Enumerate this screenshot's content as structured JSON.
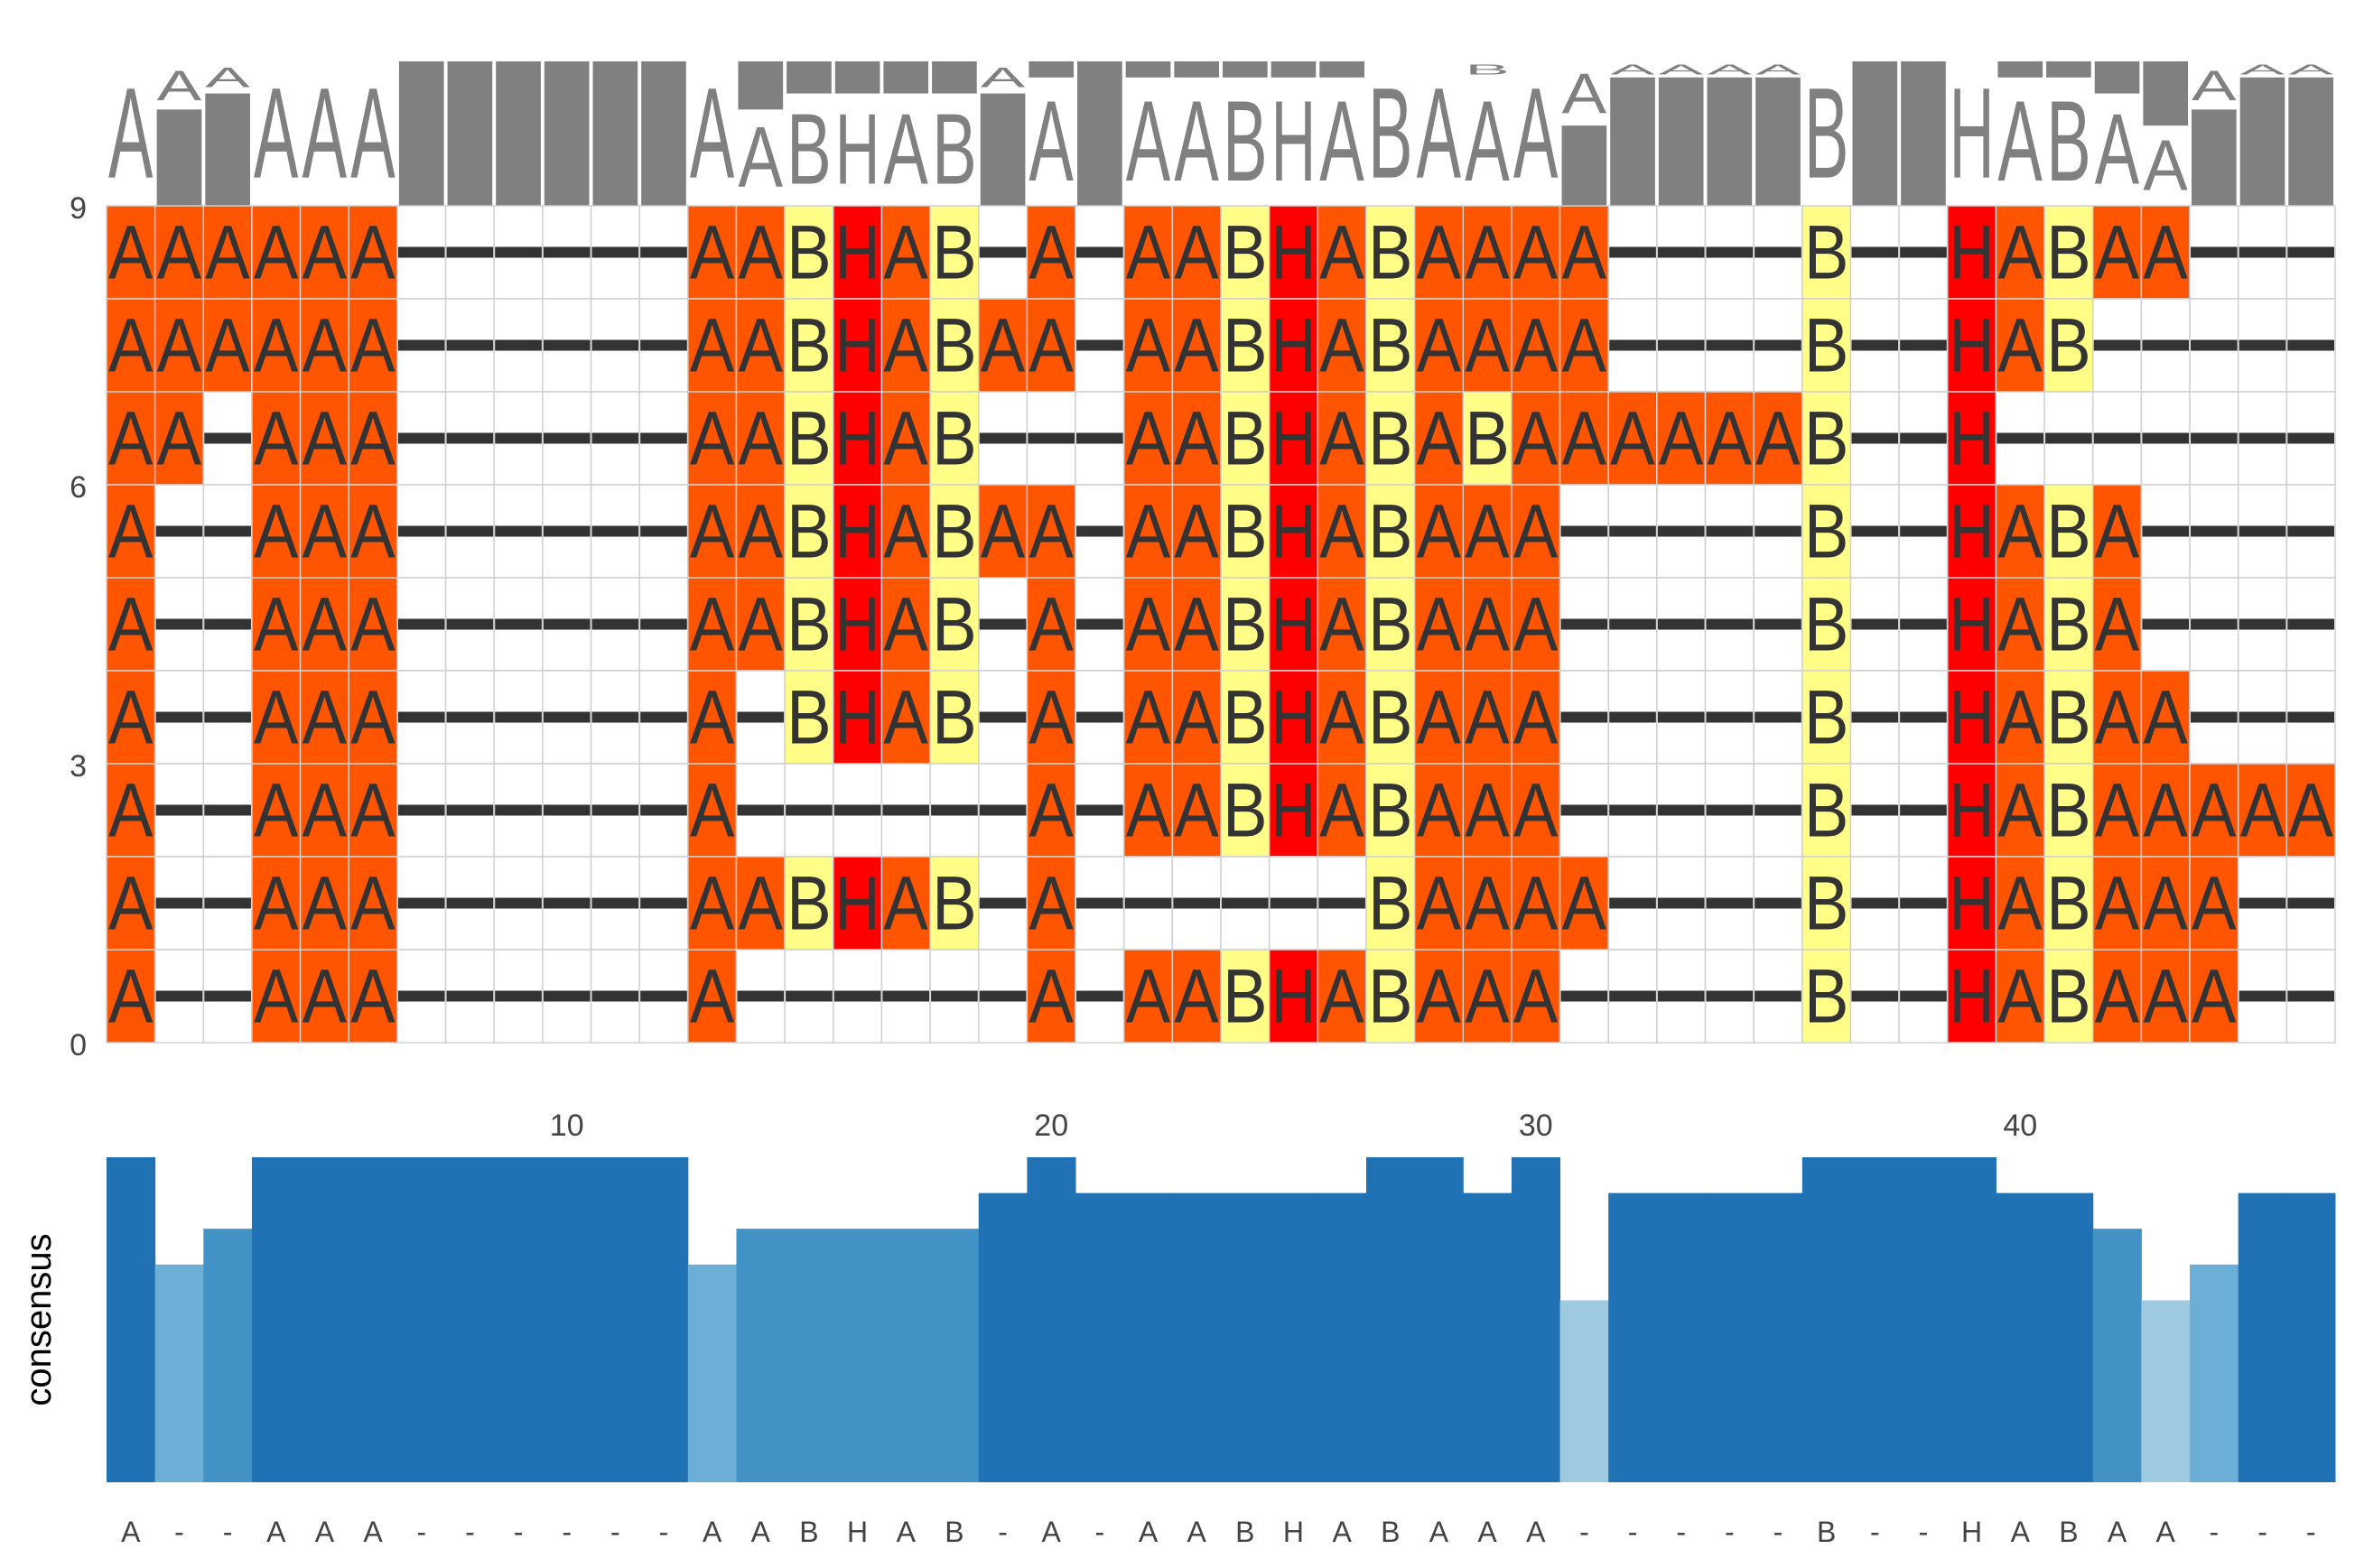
{
  "chart_data": [
    {
      "type": "heatmap",
      "title": "",
      "xlabel": "",
      "ylabel": "",
      "x_ticks": [
        10,
        20,
        30,
        40
      ],
      "y_ticks": [
        0,
        3,
        6,
        9
      ],
      "columns": 46,
      "rows_top_to_bottom": [
        "AAAAAA------AABHAB-A-AABHABAAAA----B--HABAA----",
        "AAAAAA------AABHABAA-AABHABAAAA----B--HAB------",
        "AA-AAA------AABHAB---AABHABABAAAAAAB--H--------",
        "A--AAA------AABHABAA-AABHABAAA-----B--HABA-----",
        "A--AAA------AABHAB-A-AABHABAAA-----B--HABA-----",
        "A--AAA------A-BHAB-A-AABHABAAA-----B--HABAA----",
        "A--AAA------A------A-AABHABAAA-----B--HABAAAAAA",
        "A--AAA------AABHAB-A------BAAAA----B--HABAAA---",
        "A--AAA------A------A-AABHABAAA-----B--HABAAA---"
      ],
      "residue_colors": {
        "A": "#ff5500",
        "B": "#ffff88",
        "H": "#ff0000",
        "-": "#ffffff"
      },
      "glyph_color": "#333333",
      "logo_color": "#808080"
    },
    {
      "type": "bar",
      "ylabel": "consensus",
      "categories": [
        "A",
        "-",
        "-",
        "A",
        "A",
        "A",
        "-",
        "-",
        "-",
        "-",
        "-",
        "-",
        "A",
        "A",
        "B",
        "H",
        "A",
        "B",
        "-",
        "A",
        "-",
        "A",
        "A",
        "B",
        "H",
        "A",
        "B",
        "A",
        "A",
        "A",
        "-",
        "-",
        "-",
        "-",
        "-",
        "B",
        "-",
        "-",
        "H",
        "A",
        "B",
        "A",
        "A",
        "-",
        "-",
        "-"
      ],
      "values": [
        1.0,
        0.67,
        0.78,
        1.0,
        1.0,
        1.0,
        1.0,
        1.0,
        1.0,
        1.0,
        1.0,
        1.0,
        0.67,
        0.78,
        0.78,
        0.78,
        0.78,
        0.78,
        0.89,
        1.0,
        0.89,
        0.89,
        0.89,
        0.89,
        0.89,
        0.89,
        1.0,
        1.0,
        0.89,
        1.0,
        0.56,
        0.89,
        0.89,
        0.89,
        0.89,
        1.0,
        1.0,
        1.0,
        1.0,
        0.89,
        0.89,
        0.78,
        0.56,
        0.67,
        0.89,
        0.89
      ],
      "ylim": [
        0,
        1
      ],
      "color_scale": [
        "#9ecae1",
        "#6baed6",
        "#4292c6",
        "#2171b5"
      ]
    }
  ]
}
